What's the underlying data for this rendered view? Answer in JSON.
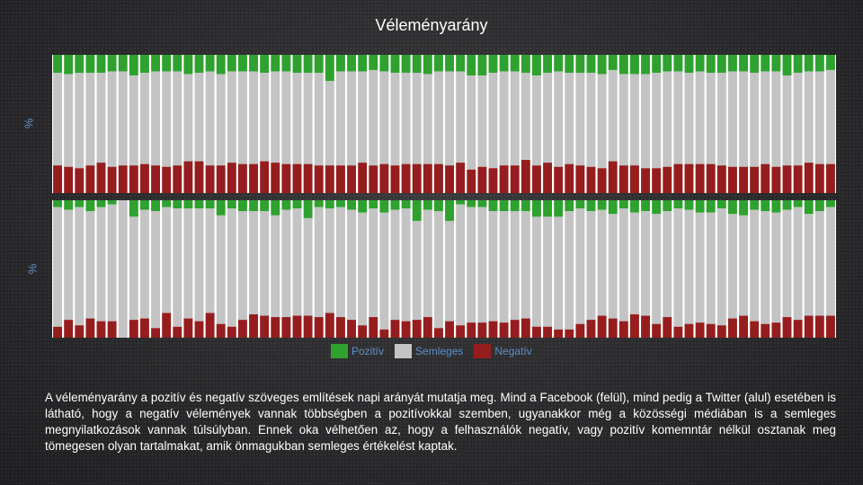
{
  "page": {
    "title": "Véleményarány",
    "caption": "A véleményarány a pozitív és negatív szöveges említések napi arányát mutatja meg. Mind a Facebook (felül), mind pedig a Twitter (alul) esetében is látható, hogy a negatív vélemények vannak többségben a pozitívokkal szemben, ugyanakkor még a közösségi médiában is a semleges megnyilatkozások vannak túlsúlyban. Ennek oka vélhetően az, hogy a felhasználók negatív, vagy pozitív komemntár nélkül osztanak meg tömegesen olyan tartalmakat, amik önmagukban semleges értékelést kaptak."
  },
  "colors": {
    "positive": "#2ea12e",
    "neutral": "#c4c4c4",
    "negative": "#961d1d"
  },
  "chart_data": [
    {
      "type": "bar",
      "stacked": true,
      "title": "",
      "ylabel": "%",
      "ylim": [
        0,
        100
      ],
      "legend": "bottom",
      "series": [
        {
          "name": "Pozitív",
          "values": [
            13,
            14,
            13,
            13,
            13,
            12,
            12,
            15,
            13,
            12,
            12,
            12,
            14,
            13,
            12,
            14,
            12,
            12,
            12,
            13,
            12,
            12,
            13,
            13,
            13,
            19,
            12,
            12,
            12,
            11,
            12,
            13,
            13,
            13,
            14,
            12,
            12,
            12,
            15,
            15,
            13,
            12,
            12,
            13,
            15,
            13,
            12,
            13,
            13,
            13,
            14,
            11,
            14,
            14,
            14,
            13,
            12,
            12,
            13,
            12,
            13,
            13,
            12,
            12,
            13,
            12,
            12,
            15,
            13,
            12,
            12,
            11
          ]
        },
        {
          "name": "Semleges",
          "values": [
            67,
            67,
            69,
            67,
            65,
            69,
            68,
            65,
            66,
            68,
            69,
            68,
            63,
            64,
            68,
            66,
            66,
            67,
            67,
            64,
            66,
            67,
            66,
            66,
            67,
            61,
            68,
            68,
            66,
            69,
            67,
            67,
            66,
            66,
            65,
            67,
            68,
            66,
            68,
            66,
            69,
            68,
            68,
            63,
            65,
            65,
            69,
            66,
            67,
            68,
            68,
            66,
            66,
            66,
            68,
            69,
            69,
            67,
            66,
            67,
            66,
            67,
            69,
            69,
            68,
            67,
            69,
            65,
            67,
            66,
            67,
            68
          ]
        },
        {
          "name": "Negatív",
          "values": [
            20,
            19,
            18,
            20,
            22,
            19,
            20,
            20,
            21,
            20,
            19,
            20,
            23,
            23,
            20,
            20,
            22,
            21,
            21,
            23,
            22,
            21,
            21,
            21,
            20,
            20,
            20,
            20,
            22,
            20,
            21,
            20,
            21,
            21,
            21,
            21,
            20,
            22,
            17,
            19,
            18,
            20,
            20,
            24,
            20,
            22,
            19,
            21,
            20,
            19,
            18,
            23,
            20,
            20,
            18,
            18,
            19,
            21,
            21,
            21,
            21,
            20,
            19,
            19,
            19,
            21,
            19,
            20,
            20,
            22,
            21,
            21
          ]
        }
      ]
    },
    {
      "type": "bar",
      "stacked": true,
      "title": "",
      "ylabel": "%",
      "ylim": [
        0,
        100
      ],
      "legend": "bottom",
      "series": [
        {
          "name": "Pozitív",
          "values": [
            5,
            7,
            5,
            8,
            5,
            3,
            0,
            12,
            7,
            8,
            5,
            6,
            6,
            6,
            6,
            11,
            6,
            8,
            8,
            8,
            11,
            7,
            6,
            13,
            5,
            6,
            5,
            7,
            9,
            6,
            9,
            7,
            6,
            15,
            7,
            8,
            15,
            3,
            5,
            5,
            8,
            8,
            8,
            8,
            12,
            12,
            12,
            8,
            6,
            8,
            7,
            10,
            6,
            9,
            8,
            10,
            8,
            6,
            7,
            9,
            9,
            6,
            10,
            11,
            7,
            8,
            9,
            7,
            5,
            10,
            8,
            5
          ]
        },
        {
          "name": "Semleges",
          "values": [
            87,
            80,
            86,
            78,
            83,
            85,
            100,
            75,
            79,
            85,
            77,
            86,
            80,
            82,
            76,
            79,
            86,
            79,
            75,
            76,
            74,
            78,
            78,
            71,
            80,
            76,
            80,
            80,
            82,
            79,
            85,
            80,
            82,
            72,
            78,
            85,
            73,
            88,
            84,
            84,
            80,
            81,
            79,
            78,
            80,
            80,
            82,
            86,
            84,
            79,
            77,
            76,
            82,
            74,
            76,
            80,
            77,
            86,
            83,
            80,
            81,
            85,
            76,
            73,
            81,
            82,
            80,
            78,
            82,
            74,
            76,
            79
          ]
        },
        {
          "name": "Negatív",
          "values": [
            8,
            13,
            9,
            14,
            12,
            12,
            0,
            13,
            14,
            7,
            18,
            8,
            14,
            12,
            18,
            10,
            8,
            13,
            17,
            16,
            15,
            15,
            16,
            16,
            15,
            18,
            15,
            13,
            9,
            15,
            6,
            13,
            12,
            13,
            15,
            7,
            12,
            9,
            11,
            11,
            12,
            11,
            13,
            14,
            8,
            8,
            6,
            6,
            10,
            13,
            16,
            14,
            12,
            17,
            16,
            10,
            15,
            8,
            10,
            11,
            10,
            9,
            14,
            16,
            12,
            10,
            11,
            15,
            13,
            16,
            16,
            16
          ]
        }
      ]
    }
  ]
}
